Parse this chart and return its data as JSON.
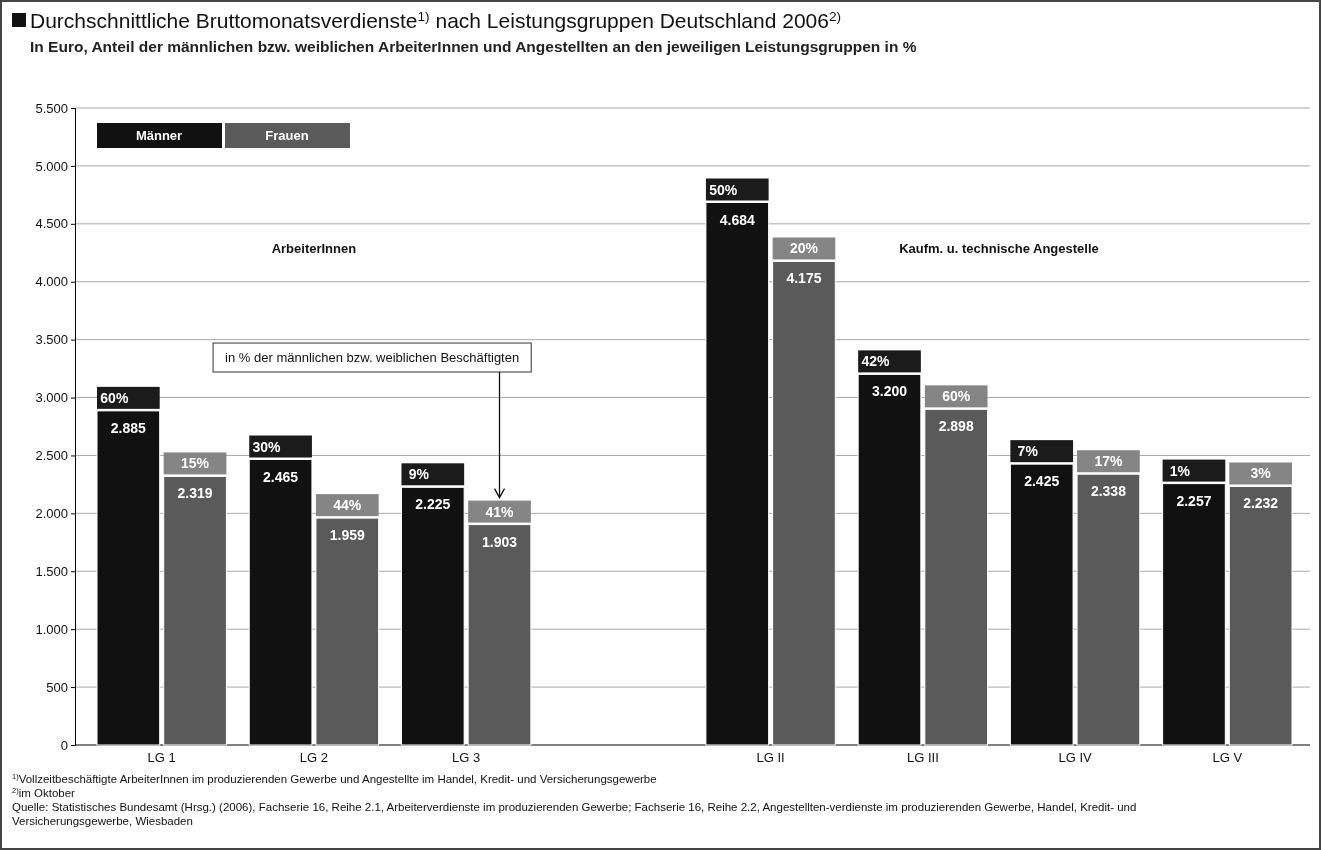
{
  "chart_data": {
    "type": "bar",
    "title": "Durchschnittliche Bruttomonatsverdienste$^{1)}$ nach Leistungsgruppen Deutschland 2006$^{2)}$",
    "subtitle": "In Euro, Anteil der männlichen bzw. weiblichen ArbeiterInnen und Angestellten an den jeweiligen Leistungsgruppen in %",
    "categories": [
      "LG 1",
      "LG 2",
      "LG 3",
      null,
      "LG II",
      "LG III",
      "LG IV",
      "LG V"
    ],
    "series": [
      {
        "name": "Männer",
        "color": "#111111",
        "values": [
          2885,
          2465,
          2225,
          null,
          4684,
          3200,
          2425,
          2257
        ],
        "value_labels": [
          "2.885",
          "2.465",
          "2.225",
          null,
          "4.684",
          "3.200",
          "2.425",
          "2.257"
        ]
      },
      {
        "name": "Frauen",
        "color": "#5a5a5a",
        "values": [
          2319,
          1959,
          1903,
          null,
          4175,
          2898,
          2338,
          2232
        ],
        "value_labels": [
          "2.319",
          "1.959",
          "1.903",
          null,
          "4.175",
          "2.898",
          "2.338",
          "2.232"
        ]
      }
    ],
    "ylim": [
      0,
      5500
    ],
    "yticks": [
      0,
      500,
      {
        "value": 1000,
        "label": "1.000"
      },
      {
        "value": 1500,
        "label": "1.500"
      },
      {
        "value": 2000,
        "label": "2.000"
      },
      {
        "value": 2500,
        "label": "2.500"
      },
      {
        "value": 3000,
        "label": "3.000"
      },
      {
        "value": 3500,
        "label": "3.500"
      },
      {
        "value": 4000,
        "label": "4.000"
      },
      {
        "value": 4500,
        "label": "4.500"
      },
      {
        "value": 5000,
        "label": "5.000"
      },
      {
        "value": 5500,
        "label": "5.500"
      }
    ],
    "grid": "y",
    "legend": "top left",
    "annotations": [
      "ArbeiterInnen",
      "Kaufm. u. technische Angestelle",
      "in % der männlichen bzw. weiblichen Beschäftigten",
      "$^{1)}$Vollzeitbeschäftigte ArbeiterInnen im produzierenden Gewerbe und  Angestellte im Handel, Kredit- und Versicherungsgewerbe",
      "$^{2)}$im Oktober",
      "Quelle: Statistisches Bundesamt (Hrsg.) (2006), Fachserie 16, Reihe 2.1, Arbeiterverdienste im produzierenden Gewerbe; Fachserie 16, Reihe 2.2, Angestellten-verdienste im produzierenden Gewerbe, Handel, Kredit- und Versicherungsgewerbe, Wiesbaden",
      {
        "text": "60%",
        "x": "LG 1",
        "y": 2885
      },
      {
        "text": "15%",
        "x": "LG 1",
        "y": 2319
      },
      {
        "text": "30%",
        "x": "LG 2",
        "y": 2465
      },
      {
        "text": "44%",
        "x": "LG 2",
        "y": 1959
      },
      {
        "text": "9%",
        "x": "LG 3",
        "y": 2225
      },
      {
        "text": "41%",
        "x": "LG 3",
        "y": 1903
      },
      {
        "text": "50%",
        "x": "LG II",
        "y": 4684
      },
      {
        "text": "20%",
        "x": "LG II",
        "y": 4175
      },
      {
        "text": "42%",
        "x": "LG III",
        "y": 3200
      },
      {
        "text": "60%",
        "x": "LG III",
        "y": 2898
      },
      {
        "text": "7%",
        "x": "LG IV",
        "y": 2425
      },
      {
        "text": "17%",
        "x": "LG IV",
        "y": 2338
      },
      {
        "text": "1%",
        "x": "LG V",
        "y": 2257
      },
      {
        "text": "3%",
        "x": "LG V",
        "y": 2232
      }
    ]
  }
}
